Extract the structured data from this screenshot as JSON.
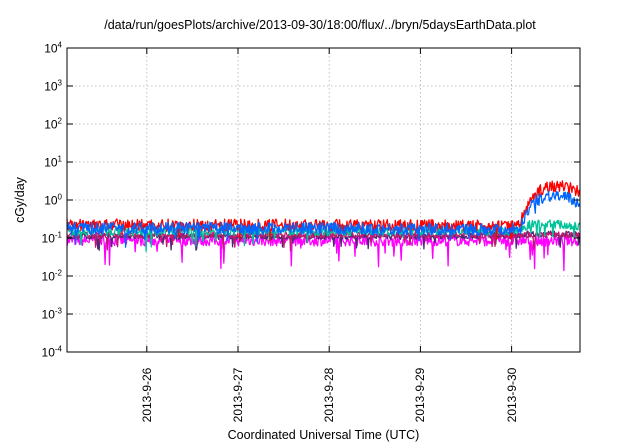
{
  "chart_data": {
    "type": "line",
    "title": "/data/run/goesPlots/archive/2013-09-30/18:00/flux/../bryn/5daysEarthData.plot",
    "xlabel": "Coordinated Universal Time (UTC)",
    "ylabel": "cGy/day",
    "yscale": "log",
    "ylim": [
      0.0001,
      10000
    ],
    "xlim": [
      "2013-09-25 03:00",
      "2013-09-30 18:00"
    ],
    "grid": true,
    "legend": "none",
    "yticks": [
      {
        "base": "10",
        "exp": "-4",
        "value": 0.0001
      },
      {
        "base": "10",
        "exp": "-3",
        "value": 0.001
      },
      {
        "base": "10",
        "exp": "-2",
        "value": 0.01
      },
      {
        "base": "10",
        "exp": "-1",
        "value": 0.1
      },
      {
        "base": "10",
        "exp": "0",
        "value": 1
      },
      {
        "base": "10",
        "exp": "1",
        "value": 10
      },
      {
        "base": "10",
        "exp": "2",
        "value": 100
      },
      {
        "base": "10",
        "exp": "3",
        "value": 1000
      },
      {
        "base": "10",
        "exp": "4",
        "value": 10000
      }
    ],
    "xticks": [
      {
        "label": "2013-9-26",
        "value": "2013-09-26 00:00"
      },
      {
        "label": "2013-9-27",
        "value": "2013-09-27 00:00"
      },
      {
        "label": "2013-9-28",
        "value": "2013-09-28 00:00"
      },
      {
        "label": "2013-9-29",
        "value": "2013-09-29 00:00"
      },
      {
        "label": "2013-9-30",
        "value": "2013-09-30 00:00"
      }
    ],
    "series": [
      {
        "color": "#ff00ff",
        "jitter": 0.14,
        "dip": 0.45,
        "x": [
          "2013-09-25 03:00",
          "2013-09-26 00:00",
          "2013-09-27 00:00",
          "2013-09-28 00:00",
          "2013-09-29 00:00",
          "2013-09-30 00:00",
          "2013-09-30 06:00",
          "2013-09-30 12:00",
          "2013-09-30 18:00"
        ],
        "values": [
          0.085,
          0.085,
          0.085,
          0.085,
          0.085,
          0.085,
          0.085,
          0.085,
          0.085
        ]
      },
      {
        "color": "#4b2a70",
        "jitter": 0.08,
        "dip": 0.25,
        "x": [
          "2013-09-25 03:00",
          "2013-09-26 00:00",
          "2013-09-27 00:00",
          "2013-09-28 00:00",
          "2013-09-29 00:00",
          "2013-09-30 00:00",
          "2013-09-30 06:00",
          "2013-09-30 12:00",
          "2013-09-30 18:00"
        ],
        "values": [
          0.11,
          0.11,
          0.11,
          0.11,
          0.11,
          0.12,
          0.13,
          0.13,
          0.12
        ]
      },
      {
        "color": "#c21870",
        "jitter": 0.08,
        "dip": 0.25,
        "x": [
          "2013-09-25 03:00",
          "2013-09-26 00:00",
          "2013-09-27 00:00",
          "2013-09-28 00:00",
          "2013-09-29 00:00",
          "2013-09-30 00:00",
          "2013-09-30 06:00",
          "2013-09-30 12:00",
          "2013-09-30 18:00"
        ],
        "values": [
          0.12,
          0.12,
          0.12,
          0.12,
          0.12,
          0.12,
          0.12,
          0.12,
          0.12
        ]
      },
      {
        "color": "#00c29a",
        "jitter": 0.12,
        "dip": 0.3,
        "x": [
          "2013-09-25 03:00",
          "2013-09-26 00:00",
          "2013-09-27 00:00",
          "2013-09-28 00:00",
          "2013-09-29 00:00",
          "2013-09-30 00:00",
          "2013-09-30 03:00",
          "2013-09-30 06:00",
          "2013-09-30 12:00",
          "2013-09-30 18:00"
        ],
        "values": [
          0.15,
          0.15,
          0.15,
          0.15,
          0.15,
          0.15,
          0.2,
          0.24,
          0.23,
          0.2
        ]
      },
      {
        "color": "#ff0000",
        "jitter": 0.16,
        "dip": 0.2,
        "x": [
          "2013-09-25 03:00",
          "2013-09-26 00:00",
          "2013-09-27 00:00",
          "2013-09-28 00:00",
          "2013-09-29 00:00",
          "2013-09-30 00:00",
          "2013-09-30 02:00",
          "2013-09-30 04:00",
          "2013-09-30 06:00",
          "2013-09-30 09:00",
          "2013-09-30 12:00",
          "2013-09-30 15:00",
          "2013-09-30 18:00"
        ],
        "values": [
          0.22,
          0.22,
          0.22,
          0.22,
          0.21,
          0.2,
          0.25,
          0.6,
          1.4,
          2.2,
          2.4,
          2.3,
          1.6
        ]
      },
      {
        "color": "#0066ff",
        "jitter": 0.16,
        "dip": 0.25,
        "x": [
          "2013-09-25 03:00",
          "2013-09-26 00:00",
          "2013-09-27 00:00",
          "2013-09-28 00:00",
          "2013-09-29 00:00",
          "2013-09-30 00:00",
          "2013-09-30 02:00",
          "2013-09-30 04:00",
          "2013-09-30 06:00",
          "2013-09-30 09:00",
          "2013-09-30 12:00",
          "2013-09-30 15:00",
          "2013-09-30 18:00"
        ],
        "values": [
          0.18,
          0.18,
          0.18,
          0.18,
          0.17,
          0.17,
          0.2,
          0.45,
          0.9,
          1.3,
          1.3,
          1.1,
          0.8
        ]
      }
    ]
  }
}
